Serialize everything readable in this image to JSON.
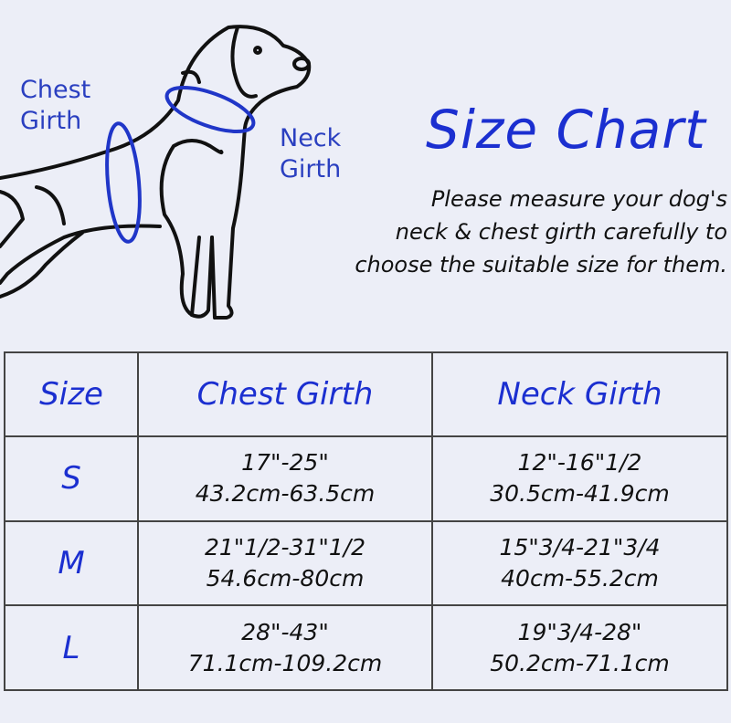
{
  "labels": {
    "chest": [
      "Chest",
      "Girth"
    ],
    "neck": [
      "Neck",
      "Girth"
    ]
  },
  "title": "Size Chart",
  "description": [
    "Please measure your dog's",
    "neck & chest girth carefully to",
    "choose the suitable size for them."
  ],
  "table": {
    "headers": [
      "Size",
      "Chest Girth",
      "Neck Girth"
    ],
    "rows": [
      {
        "size": "S",
        "chest": [
          "17\"-25\"",
          "43.2cm-63.5cm"
        ],
        "neck": [
          "12\"-16\"1/2",
          "30.5cm-41.9cm"
        ]
      },
      {
        "size": "M",
        "chest": [
          "21\"1/2-31\"1/2",
          "54.6cm-80cm"
        ],
        "neck": [
          "15\"3/4-21\"3/4",
          "40cm-55.2cm"
        ]
      },
      {
        "size": "L",
        "chest": [
          "28\"-43\"",
          "71.1cm-109.2cm"
        ],
        "neck": [
          "19\"3/4-28\"",
          "50.2cm-71.1cm"
        ]
      }
    ]
  },
  "colors": {
    "accent": "#1b2fd0",
    "background": "#eceef7",
    "line": "#111111"
  }
}
